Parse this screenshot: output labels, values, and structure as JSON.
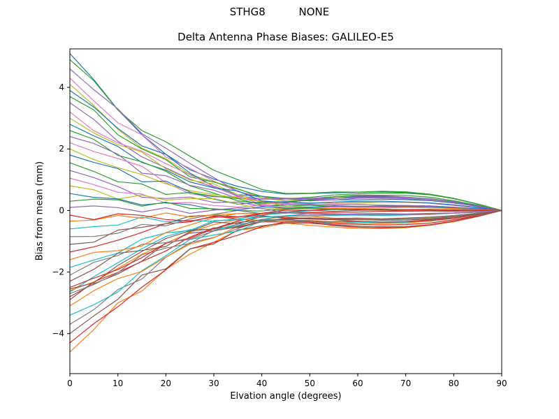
{
  "figure": {
    "suptitle": "STHG8          NONE"
  },
  "chart_data": {
    "type": "line",
    "title": "Delta Antenna Phase Biases: GALILEO-E5",
    "xlabel": "Elvation angle (degrees)",
    "ylabel": "Bias from mean (mm)",
    "xlim": [
      0,
      90
    ],
    "ylim": [
      -5.3,
      5.25
    ],
    "xticks": [
      0,
      10,
      20,
      30,
      40,
      50,
      60,
      70,
      80,
      90
    ],
    "yticks": [
      -4,
      -2,
      0,
      2,
      4
    ],
    "grid": false,
    "legend": "none",
    "x": [
      0,
      5,
      10,
      15,
      20,
      25,
      30,
      35,
      40,
      45,
      50,
      55,
      60,
      65,
      70,
      75,
      80,
      85,
      90
    ],
    "series_starts": [
      5.1,
      -4.6,
      4.9,
      -4.3,
      4.6,
      -4.0,
      4.3,
      -3.7,
      4.1,
      -3.4,
      3.9,
      -3.1,
      3.7,
      -2.9,
      3.5,
      -2.8,
      3.2,
      -2.7,
      3.0,
      -2.65,
      2.8,
      -2.6,
      2.6,
      -2.5,
      2.4,
      -2.3,
      2.2,
      -2.1,
      2.0,
      -1.85,
      1.8,
      -1.6,
      1.55,
      -1.35,
      1.3,
      -1.1,
      1.05,
      -0.85,
      0.8,
      -0.6,
      0.55,
      -0.35,
      0.3,
      -0.15,
      0.1,
      -2.55
    ],
    "decay_profile": [
      1.0,
      0.86,
      0.7,
      0.56,
      0.44,
      0.33,
      0.24,
      0.16,
      0.09,
      0.05,
      0.03,
      0.02,
      0.015,
      0.012,
      0.01,
      0.008,
      0.006,
      0.003,
      0
    ],
    "bulge_profile": [
      0,
      0,
      0,
      0,
      0,
      0,
      0.02,
      0.08,
      0.2,
      0.4,
      0.6,
      0.78,
      0.88,
      0.92,
      0.9,
      0.8,
      0.6,
      0.33,
      0
    ],
    "wiggle_amplitude": [
      0,
      0.3,
      0.45,
      0.5,
      0.48,
      0.42,
      0.36,
      0.3,
      0.22,
      0.16,
      0.1,
      0.07,
      0.05,
      0.04,
      0.035,
      0.03,
      0.025,
      0.015,
      0
    ],
    "bulge_scale": 0.13,
    "bulge_noise": 0.18,
    "palette": [
      "#1f77b4",
      "#ff7f0e",
      "#2ca02c",
      "#d62728",
      "#9467bd",
      "#8c564b",
      "#e377c2",
      "#7f7f7f",
      "#bcbd22",
      "#17becf"
    ],
    "line_width": 1.2,
    "axis_color": "#000000",
    "background": "#ffffff"
  }
}
